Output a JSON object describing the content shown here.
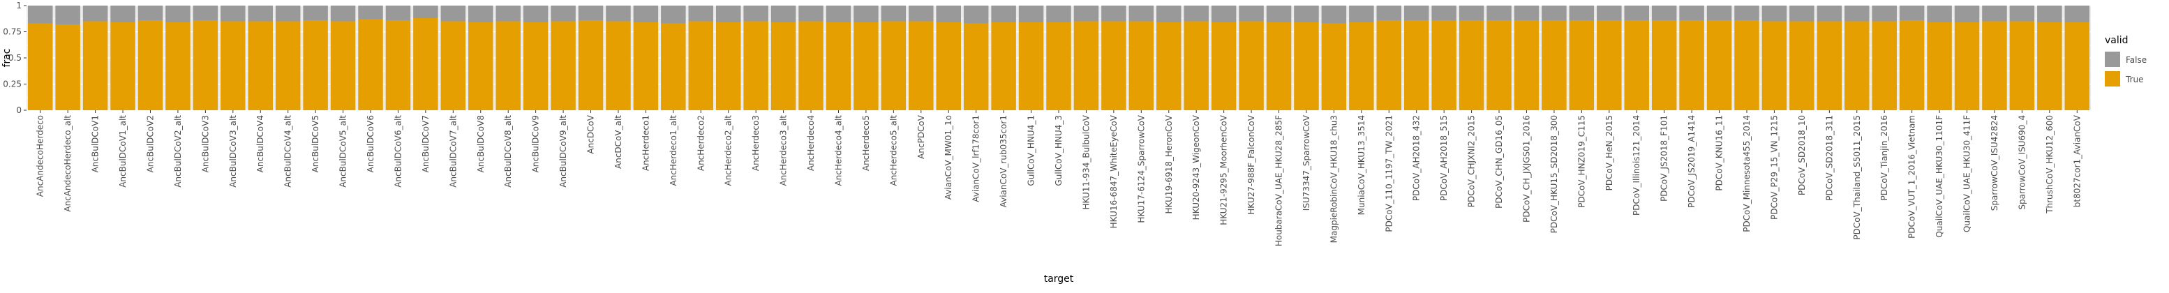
{
  "chart_data": {
    "type": "bar",
    "stacked": true,
    "title": "",
    "xlabel": "target",
    "ylabel": "frac",
    "ylim": [
      0,
      1
    ],
    "yticks": [
      "0",
      "0.25",
      "0.5",
      "0.75",
      "1"
    ],
    "grid": true,
    "legend": {
      "title": "valid",
      "position": "right",
      "entries": [
        "False",
        "True"
      ]
    },
    "colors": {
      "False": "#999999",
      "True": "#E69F00",
      "panel": "#EBEBEB",
      "grid": "#FFFFFF"
    },
    "categories": [
      "AncAndecoHerdeco",
      "AncAndecoHerdeco_alt",
      "AncBulDCoV1",
      "AncBulDCoV1_alt",
      "AncBulDCoV2",
      "AncBulDCoV2_alt",
      "AncBulDCoV3",
      "AncBulDCoV3_alt",
      "AncBulDCoV4",
      "AncBulDCoV4_alt",
      "AncBulDCoV5",
      "AncBulDCoV5_alt",
      "AncBulDCoV6",
      "AncBulDCoV6_alt",
      "AncBulDCoV7",
      "AncBulDCoV7_alt",
      "AncBulDCoV8",
      "AncBulDCoV8_alt",
      "AncBulDCoV9",
      "AncBulDCoV9_alt",
      "AncDCoV",
      "AncDCoV_alt",
      "AncHerdeco1",
      "AncHerdeco1_alt",
      "AncHerdeco2",
      "AncHerdeco2_alt",
      "AncHerdeco3",
      "AncHerdeco3_alt",
      "AncHerdeco4",
      "AncHerdeco4_alt",
      "AncHerdeco5",
      "AncHerdeco5_alt",
      "AncPDCoV",
      "AvianCoV_MW01_1o",
      "AvianCoV_lrf178cor1",
      "AvianCoV_rub035cor1",
      "GullCoV_HNU4_1",
      "GullCoV_HNU4_3",
      "HKU11-934_BulbulCoV",
      "HKU16-6847_WhiteEyeCoV",
      "HKU17-6124_SparrowCoV",
      "HKU19-6918_HeronCoV",
      "HKU20-9243_WigeonCoV",
      "HKU21-9295_MoorhenCoV",
      "HKU27-988F_FalconCoV",
      "HoubaraCoV_UAE_HKU28_285F",
      "ISU73347_SparrowCoV",
      "MagpieRobinCoV_HKU18_chu3",
      "MuniaCoV_HKU13_3514",
      "PDCoV_110_1197_TW_2021",
      "PDCoV_AH2018_432",
      "PDCoV_AH2018_515",
      "PDCoV_CHJXNI2_2015",
      "PDCoV_CHN_GD16_05",
      "PDCoV_CH_JXJGS01_2016",
      "PDCoV_HKU15_SD2018_300",
      "PDCoV_HNZ019_C115",
      "PDCoV_HeN_2015",
      "PDCoV_Illinois121_2014",
      "PDCoV_JS2018_F101",
      "PDCoV_JS2019_A1414",
      "PDCoV_KNU16_11",
      "PDCoV_Minnesota455_2014",
      "PDCoV_P29_15_VN_1215",
      "PDCoV_SD2018_10",
      "PDCoV_SD2018_311",
      "PDCoV_Thailand_S5011_2015",
      "PDCoV_Tianjin_2016",
      "PDCoV_VUT_1_2016_Vietnam",
      "QuailCoV_UAE_HKU30_1101F",
      "QuailCoV_UAE_HKU30_411F",
      "SparrowCoV_ISU42824",
      "SparrowCoV_ISU690_4",
      "ThrushCoV_HKU12_600",
      "bt8027cor1_AvianCoV"
    ],
    "series": [
      {
        "name": "True",
        "values": [
          0.83,
          0.82,
          0.85,
          0.84,
          0.86,
          0.84,
          0.86,
          0.85,
          0.85,
          0.85,
          0.86,
          0.85,
          0.87,
          0.86,
          0.88,
          0.85,
          0.84,
          0.85,
          0.84,
          0.85,
          0.86,
          0.85,
          0.84,
          0.83,
          0.85,
          0.84,
          0.85,
          0.84,
          0.85,
          0.84,
          0.84,
          0.85,
          0.85,
          0.84,
          0.83,
          0.84,
          0.84,
          0.84,
          0.85,
          0.85,
          0.85,
          0.84,
          0.85,
          0.84,
          0.85,
          0.84,
          0.84,
          0.83,
          0.84,
          0.86,
          0.86,
          0.86,
          0.86,
          0.86,
          0.86,
          0.86,
          0.86,
          0.86,
          0.86,
          0.86,
          0.86,
          0.86,
          0.86,
          0.85,
          0.85,
          0.85,
          0.85,
          0.85,
          0.86,
          0.84,
          0.84,
          0.85,
          0.85,
          0.84,
          0.84
        ]
      },
      {
        "name": "False",
        "values": [
          0.17,
          0.18,
          0.15,
          0.16,
          0.14,
          0.16,
          0.14,
          0.15,
          0.15,
          0.15,
          0.14,
          0.15,
          0.13,
          0.14,
          0.12,
          0.15,
          0.16,
          0.15,
          0.16,
          0.15,
          0.14,
          0.15,
          0.16,
          0.17,
          0.15,
          0.16,
          0.15,
          0.16,
          0.15,
          0.16,
          0.16,
          0.15,
          0.15,
          0.16,
          0.17,
          0.16,
          0.16,
          0.16,
          0.15,
          0.15,
          0.15,
          0.16,
          0.15,
          0.16,
          0.15,
          0.16,
          0.16,
          0.17,
          0.16,
          0.14,
          0.14,
          0.14,
          0.14,
          0.14,
          0.14,
          0.14,
          0.14,
          0.14,
          0.14,
          0.14,
          0.14,
          0.14,
          0.14,
          0.15,
          0.15,
          0.15,
          0.15,
          0.15,
          0.14,
          0.16,
          0.16,
          0.15,
          0.15,
          0.16,
          0.16
        ]
      }
    ]
  }
}
